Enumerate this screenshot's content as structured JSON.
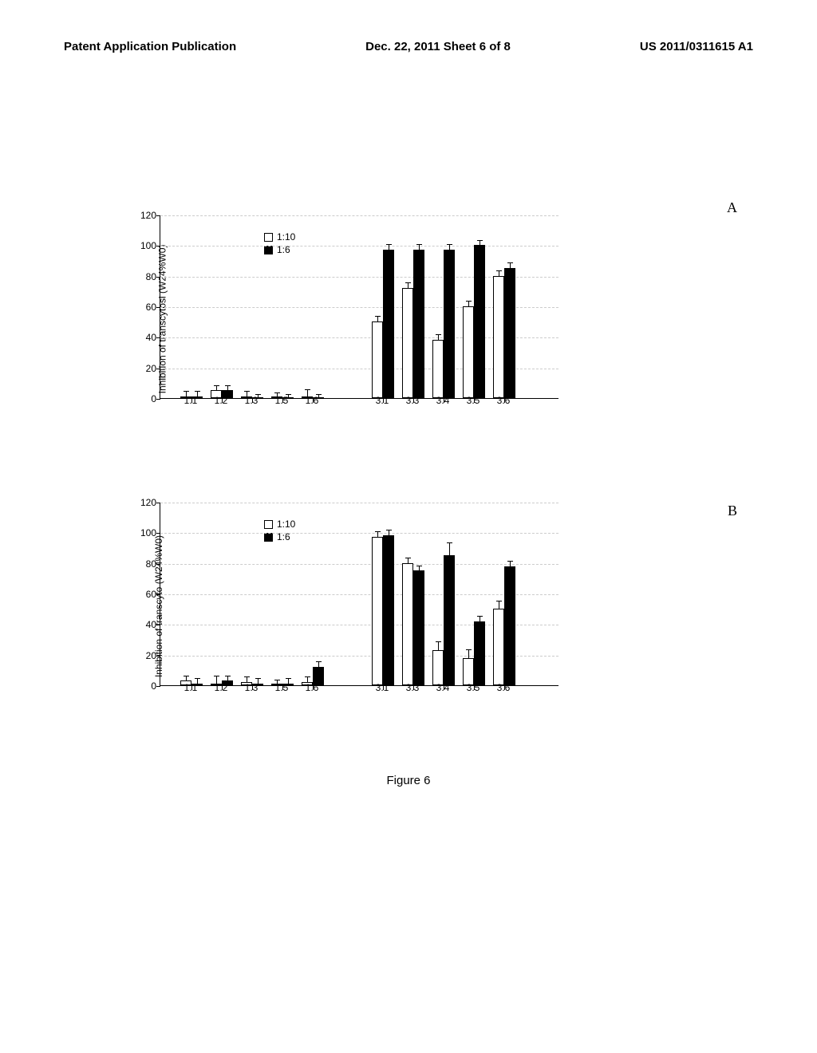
{
  "header": {
    "left": "Patent Application Publication",
    "center": "Dec. 22, 2011  Sheet 6 of 8",
    "right": "US 2011/0311615 A1"
  },
  "figure_label": "Figure 6",
  "panels": {
    "a_label": "A",
    "b_label": "B"
  },
  "chart_a": {
    "type": "bar",
    "y_label": "Inhibition of transcytosi\n(W24%W0)",
    "ylim": [
      0,
      120
    ],
    "ytick_step": 20,
    "categories": [
      "1.1",
      "1.2",
      "1.3",
      "1.5",
      "1.6",
      "3.1",
      "3.3",
      "3.4",
      "3.5",
      "3.6"
    ],
    "gap_after_index": 4,
    "series_white": {
      "label": "1:10",
      "values": [
        1,
        5,
        1,
        0,
        1,
        50,
        72,
        38,
        60,
        80
      ],
      "errors": [
        3,
        3,
        3,
        3,
        4,
        3,
        3,
        3,
        3,
        3
      ]
    },
    "series_black": {
      "label": "1:6",
      "values": [
        1,
        5,
        0,
        0,
        0,
        97,
        97,
        97,
        100,
        85
      ],
      "errors": [
        3,
        3,
        2,
        2,
        2,
        3,
        3,
        3,
        3,
        3
      ]
    },
    "bar_color_white": "#ffffff",
    "bar_color_black": "#000000",
    "grid_color": "#cccccc",
    "background_color": "#ffffff"
  },
  "chart_b": {
    "type": "bar",
    "y_label": "Inhibition of transcyto\n(W24%W0)",
    "ylim": [
      0,
      120
    ],
    "ytick_step": 20,
    "categories": [
      "1.1",
      "1.2",
      "1.3",
      "1.5",
      "1.6",
      "3.1",
      "3.3",
      "3.4",
      "3.5",
      "3.6"
    ],
    "gap_after_index": 4,
    "series_white": {
      "label": "1:10",
      "values": [
        3,
        1,
        2,
        0,
        2,
        97,
        80,
        23,
        18,
        50
      ],
      "errors": [
        3,
        5,
        3,
        3,
        3,
        3,
        3,
        5,
        5,
        5
      ]
    },
    "series_black": {
      "label": "1:6",
      "values": [
        1,
        3,
        1,
        1,
        12,
        98,
        75,
        85,
        42,
        78
      ],
      "errors": [
        3,
        3,
        3,
        3,
        3,
        3,
        3,
        8,
        3,
        3
      ]
    },
    "bar_color_white": "#ffffff",
    "bar_color_black": "#000000",
    "grid_color": "#cccccc",
    "background_color": "#ffffff"
  }
}
